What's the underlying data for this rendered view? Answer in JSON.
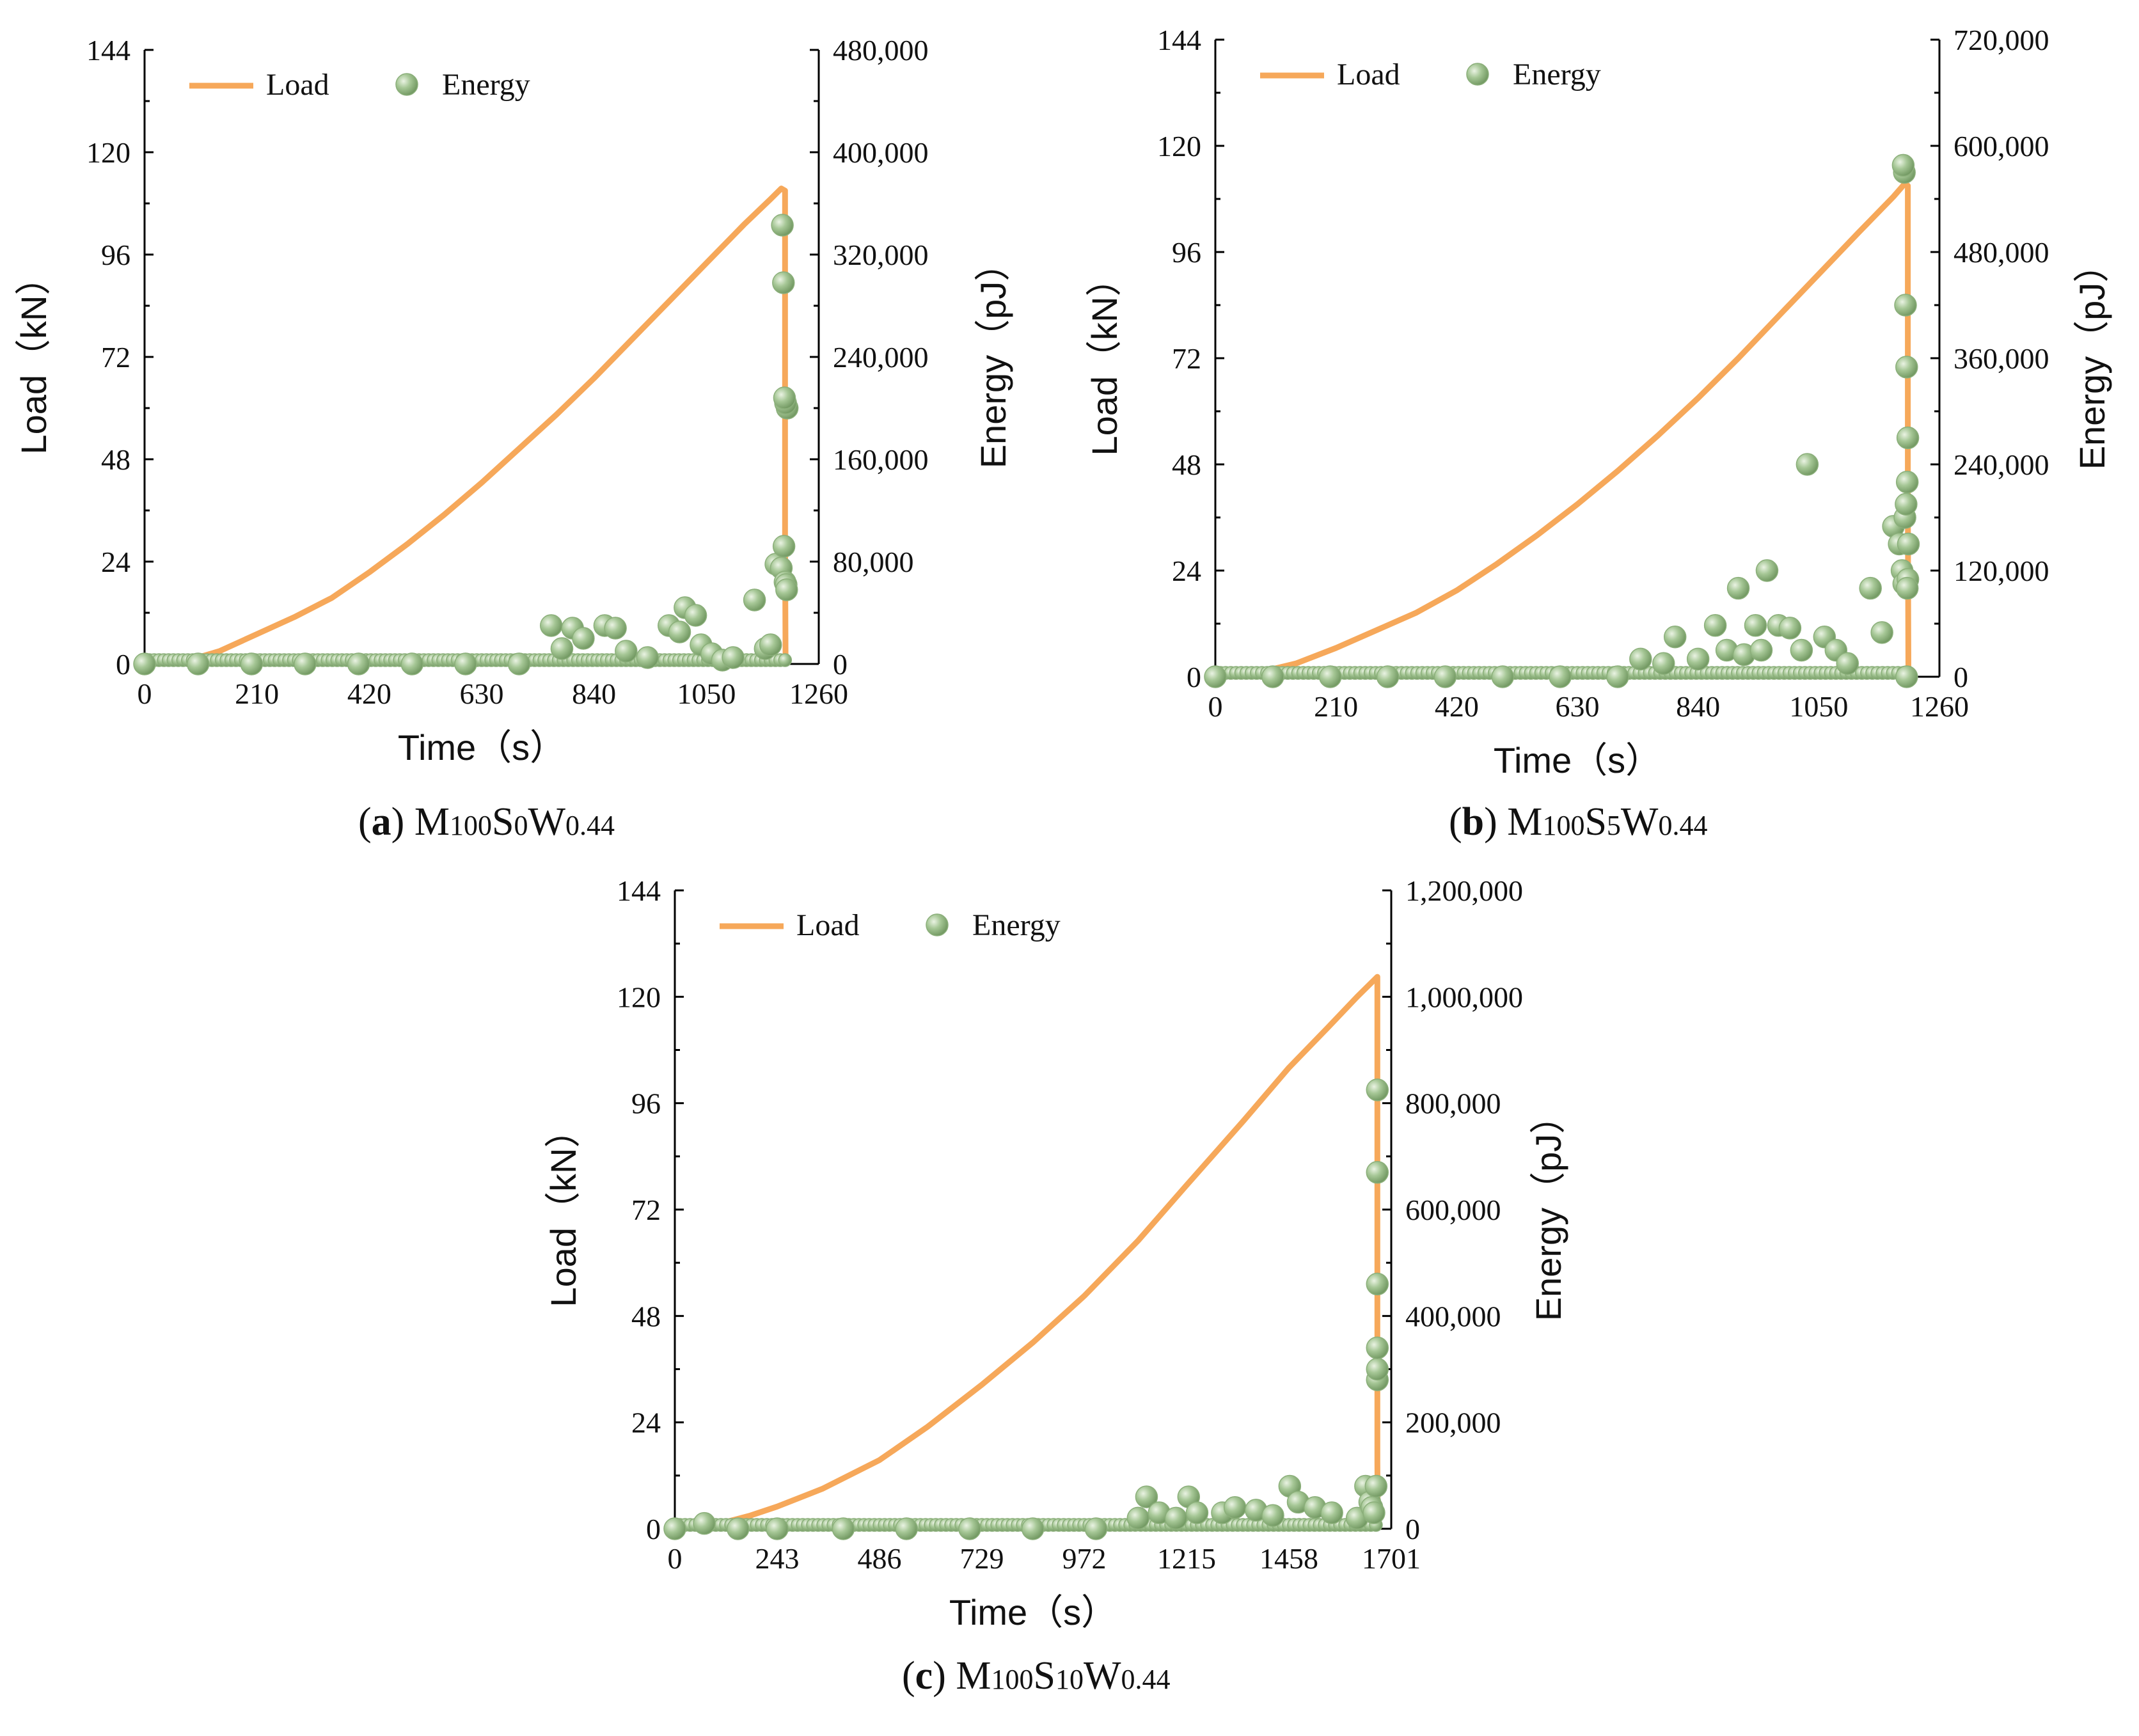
{
  "colors": {
    "load": "#F6A85A",
    "energy": "#A6C796",
    "energy_edge": "#7FA36F",
    "axis": "#000000"
  },
  "chart_data": [
    {
      "id": "a",
      "type": "line+scatter",
      "caption": {
        "letter": "a",
        "prefix": "M",
        "sub1": "100",
        "mid1": "S",
        "sub2": "0",
        "mid2": "W",
        "sub3": "0.44"
      },
      "xlabel": "Time（s）",
      "ylabel": "Load（kN）",
      "y2label": "Energy（pJ）",
      "xlim": [
        0,
        1260
      ],
      "ylim": [
        0,
        144
      ],
      "y2lim": [
        0,
        480000
      ],
      "xticks": [
        "0",
        "210",
        "420",
        "630",
        "840",
        "1050",
        "1260"
      ],
      "yticks": [
        "0",
        "24",
        "48",
        "72",
        "96",
        "120",
        "144"
      ],
      "y2ticks": [
        "0",
        "80,000",
        "160,000",
        "240,000",
        "320,000",
        "400,000",
        "480,000"
      ],
      "legend": {
        "placement": "top-left",
        "load": "Load",
        "energy": "Energy"
      },
      "series": [
        {
          "name": "Load",
          "axis": "left",
          "type": "line",
          "x": [
            0,
            80,
            140,
            210,
            280,
            350,
            420,
            490,
            560,
            630,
            700,
            770,
            840,
            910,
            980,
            1050,
            1120,
            1170,
            1190,
            1197,
            1197,
            1198
          ],
          "y": [
            0.5,
            0.8,
            3.0,
            7.0,
            11.0,
            15.5,
            21.5,
            28.0,
            35.0,
            42.5,
            50.5,
            58.5,
            67.0,
            76.0,
            85.0,
            94.0,
            103.0,
            109.0,
            111.5,
            111.0,
            30.0,
            1.0
          ]
        },
        {
          "name": "Energy",
          "axis": "right",
          "type": "scatter",
          "x": [
            0,
            100,
            200,
            300,
            400,
            500,
            600,
            700,
            760,
            800,
            780,
            820,
            860,
            880,
            900,
            940,
            980,
            1000,
            1010,
            1030,
            1040,
            1060,
            1080,
            1100,
            1140,
            1160,
            1170,
            1180,
            1190,
            1195,
            1197,
            1199,
            1200,
            1201,
            1198,
            1196,
            1194,
            1192
          ],
          "y": [
            0,
            0,
            0,
            0,
            0,
            0,
            0,
            0,
            30000,
            28000,
            12000,
            20000,
            30000,
            28000,
            10000,
            5000,
            30000,
            25000,
            44000,
            38000,
            15000,
            8000,
            3000,
            5000,
            50000,
            12000,
            15000,
            78000,
            75000,
            92000,
            64000,
            62000,
            58000,
            200000,
            204000,
            208000,
            298000,
            343000
          ]
        }
      ]
    },
    {
      "id": "b",
      "type": "line+scatter",
      "caption": {
        "letter": "b",
        "prefix": "M",
        "sub1": "100",
        "mid1": "S",
        "sub2": "5",
        "mid2": "W",
        "sub3": "0.44"
      },
      "xlabel": "Time（s）",
      "ylabel": "Load（kN）",
      "y2label": "Energy（pJ）",
      "xlim": [
        0,
        1260
      ],
      "ylim": [
        0,
        144
      ],
      "y2lim": [
        0,
        720000
      ],
      "xticks": [
        "0",
        "210",
        "420",
        "630",
        "840",
        "1050",
        "1260"
      ],
      "yticks": [
        "0",
        "24",
        "48",
        "72",
        "96",
        "120",
        "144"
      ],
      "y2ticks": [
        "0",
        "120,000",
        "240,000",
        "360,000",
        "480,000",
        "600,000",
        "720,000"
      ],
      "legend": {
        "placement": "top-left",
        "load": "Load",
        "energy": "Energy"
      },
      "series": [
        {
          "name": "Load",
          "axis": "left",
          "type": "line",
          "x": [
            0,
            70,
            140,
            210,
            280,
            350,
            420,
            490,
            560,
            630,
            700,
            770,
            840,
            910,
            980,
            1050,
            1120,
            1180,
            1200,
            1205,
            1205,
            1206
          ],
          "y": [
            0.5,
            0.8,
            3.0,
            6.5,
            10.5,
            14.5,
            19.5,
            25.5,
            32.0,
            39.0,
            46.5,
            54.5,
            63.0,
            72.0,
            81.5,
            91.0,
            100.5,
            108.5,
            111.5,
            111.0,
            40.0,
            1.0
          ]
        },
        {
          "name": "Energy",
          "axis": "right",
          "type": "scatter",
          "x": [
            0,
            100,
            200,
            300,
            400,
            500,
            600,
            700,
            740,
            780,
            800,
            840,
            870,
            890,
            910,
            920,
            940,
            950,
            960,
            980,
            1000,
            1020,
            1030,
            1060,
            1080,
            1100,
            1140,
            1160,
            1180,
            1190,
            1195,
            1198,
            1200,
            1202,
            1204,
            1205,
            1203,
            1201,
            1199,
            1197,
            1206,
            1205,
            1204,
            1203
          ],
          "y": [
            0,
            0,
            0,
            0,
            0,
            0,
            0,
            0,
            20000,
            15000,
            45000,
            20000,
            58000,
            30000,
            100000,
            25000,
            58000,
            30000,
            120000,
            58000,
            55000,
            30000,
            240000,
            45000,
            30000,
            15000,
            100000,
            50000,
            170000,
            150000,
            120000,
            105000,
            180000,
            195000,
            220000,
            270000,
            350000,
            420000,
            570000,
            578000,
            150000,
            110000,
            100000,
            0
          ]
        }
      ]
    },
    {
      "id": "c",
      "type": "line+scatter",
      "caption": {
        "letter": "c",
        "prefix": "M",
        "sub1": "100",
        "mid1": "S",
        "sub2": "10",
        "mid2": "W",
        "sub3": "0.44"
      },
      "xlabel": "Time（s）",
      "ylabel": "Load（kN）",
      "y2label": "Energy（pJ）",
      "xlim": [
        0,
        1701
      ],
      "ylim": [
        0,
        144
      ],
      "y2lim": [
        0,
        1200000
      ],
      "xticks": [
        "0",
        "243",
        "486",
        "729",
        "972",
        "1215",
        "1458",
        "1701"
      ],
      "yticks": [
        "0",
        "24",
        "48",
        "72",
        "96",
        "120",
        "144"
      ],
      "y2ticks": [
        "0",
        "200,000",
        "400,000",
        "600,000",
        "800,000",
        "1,000,000",
        "1,200,000"
      ],
      "legend": {
        "placement": "top-left",
        "load": "Load",
        "energy": "Energy"
      },
      "series": [
        {
          "name": "Load",
          "axis": "left",
          "type": "line",
          "x": [
            0,
            100,
            180,
            243,
            350,
            486,
            600,
            729,
            850,
            972,
            1100,
            1215,
            1350,
            1458,
            1550,
            1620,
            1668,
            1668,
            1669
          ],
          "y": [
            0.5,
            1.0,
            3.0,
            5.0,
            9.0,
            15.5,
            23.0,
            32.5,
            42.0,
            52.5,
            65.0,
            77.5,
            92.0,
            104.0,
            113.0,
            120.0,
            124.5,
            15.0,
            1.0
          ]
        },
        {
          "name": "Energy",
          "axis": "right",
          "type": "scatter",
          "x": [
            0,
            70,
            150,
            243,
            400,
            550,
            700,
            850,
            1000,
            1100,
            1120,
            1150,
            1190,
            1220,
            1240,
            1300,
            1330,
            1380,
            1420,
            1460,
            1480,
            1520,
            1560,
            1620,
            1640,
            1650,
            1655,
            1660,
            1665,
            1668,
            1668,
            1668,
            1668,
            1668,
            1668
          ],
          "y": [
            0,
            10000,
            0,
            0,
            0,
            0,
            0,
            0,
            0,
            20000,
            60000,
            30000,
            20000,
            60000,
            30000,
            30000,
            40000,
            35000,
            25000,
            80000,
            50000,
            40000,
            30000,
            20000,
            80000,
            50000,
            40000,
            30000,
            80000,
            280000,
            300000,
            340000,
            460000,
            670000,
            825000
          ]
        }
      ]
    }
  ]
}
